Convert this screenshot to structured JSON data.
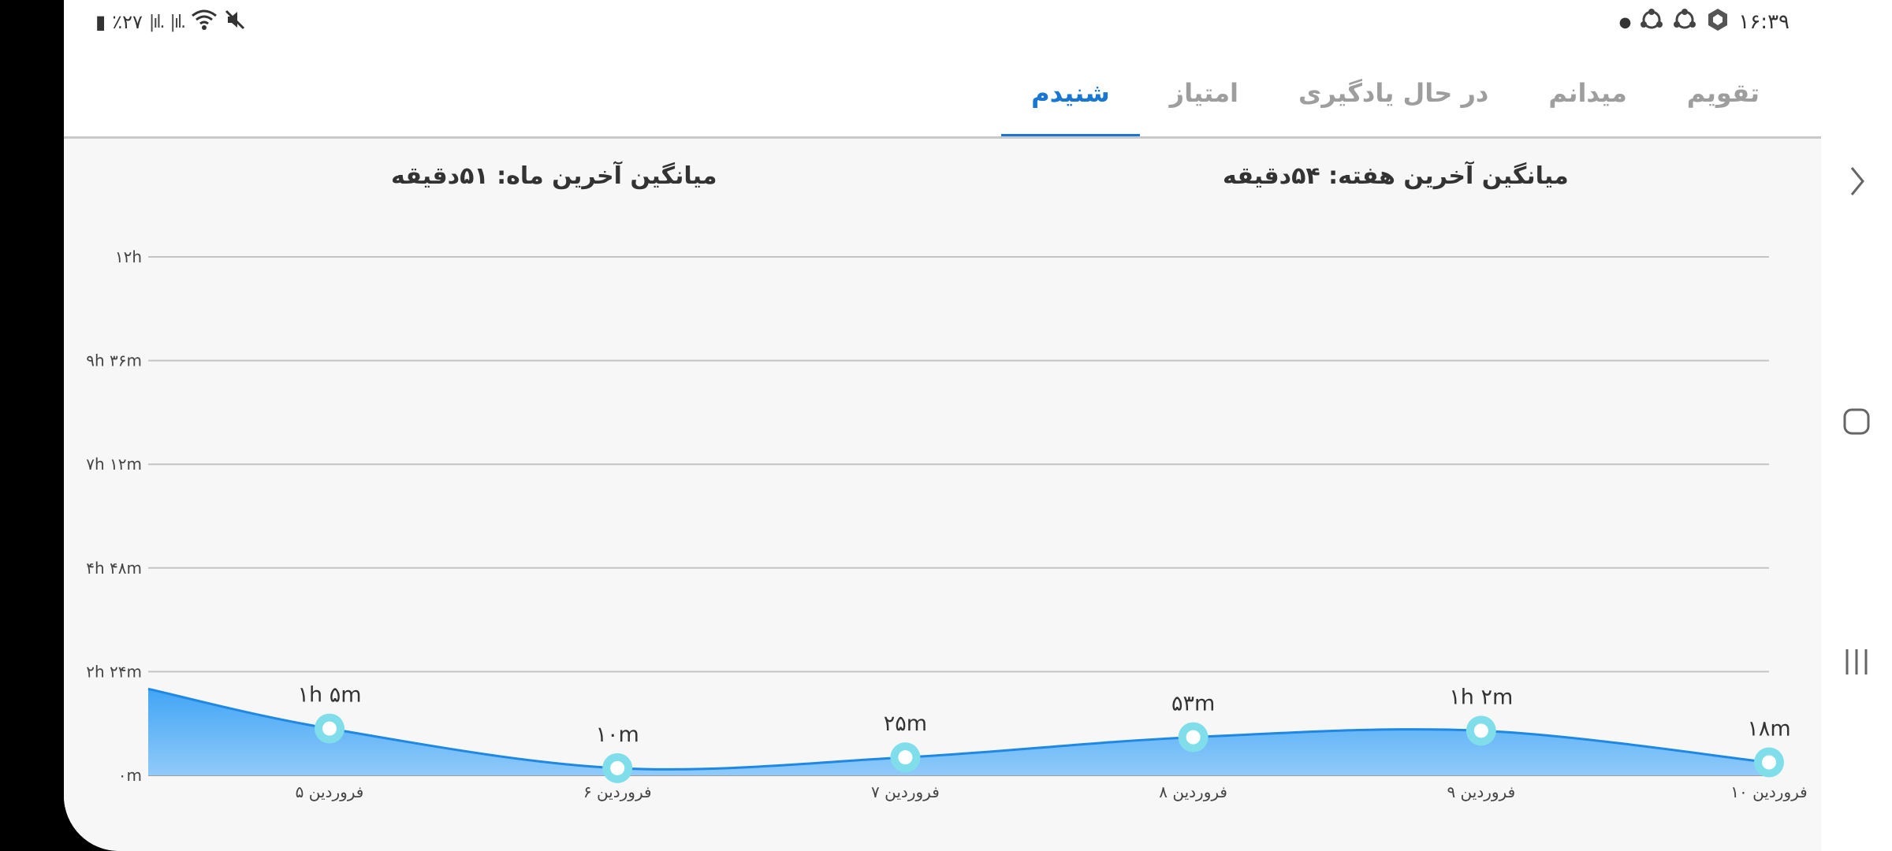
{
  "status_bar": {
    "left": {
      "battery_text": "٪۲۷",
      "icons": [
        "battery-icon",
        "signal-icon",
        "signal-icon",
        "wifi-icon",
        "mute-icon"
      ]
    },
    "right": {
      "time": "۱۶:۳۹",
      "icons": [
        "app-icon",
        "app-icon",
        "app-icon",
        "dot-icon"
      ]
    }
  },
  "tabs": [
    {
      "label": "تقویم",
      "active": false
    },
    {
      "label": "میدانم",
      "active": false
    },
    {
      "label": "در حال یادگیری",
      "active": false
    },
    {
      "label": "امتیاز",
      "active": false
    },
    {
      "label": "شنیدم",
      "active": true
    }
  ],
  "summary": {
    "week_avg": "میانگین آخرین هفته: ۵۴دقیقه",
    "month_avg": "میانگین آخرین ماه: ۵۱دقیقه"
  },
  "chart_data": {
    "type": "area",
    "y_ticks": [
      "۰m",
      "۲h ۲۴m",
      "۴h ۴۸m",
      "۷h ۱۲m",
      "۹h ۳۶m",
      "۱۲h"
    ],
    "y_max_minutes": 720,
    "categories": [
      "۵ فروردین",
      "۶ فروردین",
      "۷ فروردین",
      "۸ فروردین",
      "۹ فروردین",
      "۱۰ فروردین"
    ],
    "values_minutes": [
      65,
      10,
      25,
      53,
      62,
      18
    ],
    "labels": [
      "۱h ۵m",
      "۱۰m",
      "۲۵m",
      "۵۳m",
      "۱h ۲m",
      "۱۸m"
    ],
    "start_value_minutes": 120,
    "grid": true,
    "colors": {
      "fill_top": "#42a5f5",
      "fill_bottom": "#90caf9",
      "line": "#1e88e5",
      "point": "#80deea"
    }
  },
  "nav_bar": {
    "icons": [
      "back-icon",
      "home-icon",
      "recents-icon"
    ]
  }
}
